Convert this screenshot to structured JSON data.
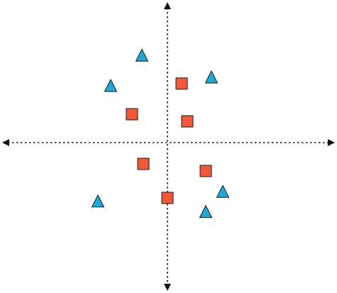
{
  "diagram": {
    "type": "scatter-quadrant",
    "axes": {
      "x_range": [
        -5,
        5
      ],
      "y_range": [
        -5,
        5
      ],
      "style": "dotted",
      "arrows": "both-ends",
      "line_color": "#111111"
    },
    "colors": {
      "triangle_fill": "#1FA8D6",
      "square_fill": "#F2593A",
      "stroke": "#1a1a1a"
    },
    "markers": [
      {
        "shape": "triangle",
        "x": -0.9,
        "y": 3.07
      },
      {
        "shape": "triangle",
        "x": -2.0,
        "y": 2.0
      },
      {
        "shape": "triangle",
        "x": 1.55,
        "y": 2.3
      },
      {
        "shape": "triangle",
        "x": -2.45,
        "y": -2.07
      },
      {
        "shape": "triangle",
        "x": 1.95,
        "y": -1.73
      },
      {
        "shape": "triangle",
        "x": 1.35,
        "y": -2.44
      },
      {
        "shape": "square",
        "x": 0.5,
        "y": 2.08
      },
      {
        "shape": "square",
        "x": -1.25,
        "y": 1.0
      },
      {
        "shape": "square",
        "x": 0.7,
        "y": 0.75
      },
      {
        "shape": "square",
        "x": -0.85,
        "y": -0.75
      },
      {
        "shape": "square",
        "x": 1.35,
        "y": -1.0
      },
      {
        "shape": "square",
        "x": 0.0,
        "y": -1.95
      }
    ]
  }
}
